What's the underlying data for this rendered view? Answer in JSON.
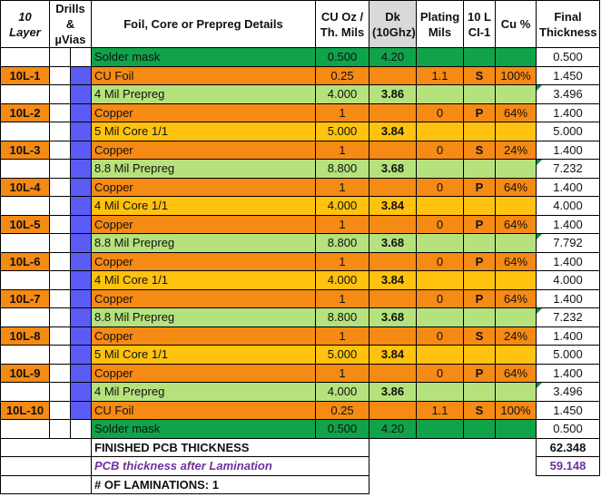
{
  "header": {
    "layer": "10 Layer",
    "drills": "Drills & µVias",
    "desc": "Foil, Core or Prepreg Details",
    "cu": "CU Oz / Th. Mils",
    "dk": "Dk (10Ghz)",
    "plating": "Plating Mils",
    "ci": "10 L CI-1",
    "cupct": "Cu %",
    "final": "Final Thickness"
  },
  "rows": [
    {
      "layer": "",
      "desc": "Solder mask",
      "cu": "0.500",
      "dk": "4.20",
      "plat": "",
      "ci": "",
      "cupct": "",
      "final": "0.500",
      "color": "green",
      "via": false,
      "flag": false
    },
    {
      "layer": "10L-1",
      "desc": "CU Foil",
      "cu": "0.25",
      "dk": "",
      "plat": "1.1",
      "ci": "S",
      "cupct": "100%",
      "final": "1.450",
      "color": "orange",
      "via": true,
      "flag": false
    },
    {
      "layer": "",
      "desc": "4 Mil Prepreg",
      "cu": "4.000",
      "dk": "3.86",
      "plat": "",
      "ci": "",
      "cupct": "",
      "final": "3.496",
      "color": "lgreen",
      "via": true,
      "flag": true
    },
    {
      "layer": "10L-2",
      "desc": "Copper",
      "cu": "1",
      "dk": "",
      "plat": "0",
      "ci": "P",
      "cupct": "64%",
      "final": "1.400",
      "color": "orange",
      "via": true,
      "flag": false
    },
    {
      "layer": "",
      "desc": "5 Mil Core 1/1",
      "cu": "5.000",
      "dk": "3.84",
      "plat": "",
      "ci": "",
      "cupct": "",
      "final": "5.000",
      "color": "yellow",
      "via": true,
      "flag": false
    },
    {
      "layer": "10L-3",
      "desc": "Copper",
      "cu": "1",
      "dk": "",
      "plat": "0",
      "ci": "S",
      "cupct": "24%",
      "final": "1.400",
      "color": "orange",
      "via": true,
      "flag": false
    },
    {
      "layer": "",
      "desc": "8.8 Mil Prepreg",
      "cu": "8.800",
      "dk": "3.68",
      "plat": "",
      "ci": "",
      "cupct": "",
      "final": "7.232",
      "color": "lgreen",
      "via": true,
      "flag": true
    },
    {
      "layer": "10L-4",
      "desc": "Copper",
      "cu": "1",
      "dk": "",
      "plat": "0",
      "ci": "P",
      "cupct": "64%",
      "final": "1.400",
      "color": "orange",
      "via": true,
      "flag": false
    },
    {
      "layer": "",
      "desc": "4 Mil Core 1/1",
      "cu": "4.000",
      "dk": "3.84",
      "plat": "",
      "ci": "",
      "cupct": "",
      "final": "4.000",
      "color": "yellow",
      "via": true,
      "flag": false
    },
    {
      "layer": "10L-5",
      "desc": "Copper",
      "cu": "1",
      "dk": "",
      "plat": "0",
      "ci": "P",
      "cupct": "64%",
      "final": "1.400",
      "color": "orange",
      "via": true,
      "flag": false
    },
    {
      "layer": "",
      "desc": "8.8 Mil Prepreg",
      "cu": "8.800",
      "dk": "3.68",
      "plat": "",
      "ci": "",
      "cupct": "",
      "final": "7.792",
      "color": "lgreen",
      "via": true,
      "flag": true
    },
    {
      "layer": "10L-6",
      "desc": "Copper",
      "cu": "1",
      "dk": "",
      "plat": "0",
      "ci": "P",
      "cupct": "64%",
      "final": "1.400",
      "color": "orange",
      "via": true,
      "flag": false
    },
    {
      "layer": "",
      "desc": "4 Mil Core 1/1",
      "cu": "4.000",
      "dk": "3.84",
      "plat": "",
      "ci": "",
      "cupct": "",
      "final": "4.000",
      "color": "yellow",
      "via": true,
      "flag": false
    },
    {
      "layer": "10L-7",
      "desc": "Copper",
      "cu": "1",
      "dk": "",
      "plat": "0",
      "ci": "P",
      "cupct": "64%",
      "final": "1.400",
      "color": "orange",
      "via": true,
      "flag": false
    },
    {
      "layer": "",
      "desc": "8.8 Mil Prepreg",
      "cu": "8.800",
      "dk": "3.68",
      "plat": "",
      "ci": "",
      "cupct": "",
      "final": "7.232",
      "color": "lgreen",
      "via": true,
      "flag": true
    },
    {
      "layer": "10L-8",
      "desc": "Copper",
      "cu": "1",
      "dk": "",
      "plat": "0",
      "ci": "S",
      "cupct": "24%",
      "final": "1.400",
      "color": "orange",
      "via": true,
      "flag": false
    },
    {
      "layer": "",
      "desc": "5 Mil Core 1/1",
      "cu": "5.000",
      "dk": "3.84",
      "plat": "",
      "ci": "",
      "cupct": "",
      "final": "5.000",
      "color": "yellow",
      "via": true,
      "flag": false
    },
    {
      "layer": "10L-9",
      "desc": "Copper",
      "cu": "1",
      "dk": "",
      "plat": "0",
      "ci": "P",
      "cupct": "64%",
      "final": "1.400",
      "color": "orange",
      "via": true,
      "flag": false
    },
    {
      "layer": "",
      "desc": "4 Mil Prepreg",
      "cu": "4.000",
      "dk": "3.86",
      "plat": "",
      "ci": "",
      "cupct": "",
      "final": "3.496",
      "color": "lgreen",
      "via": true,
      "flag": true
    },
    {
      "layer": "10L-10",
      "desc": "CU Foil",
      "cu": "0.25",
      "dk": "",
      "plat": "1.1",
      "ci": "S",
      "cupct": "100%",
      "final": "1.450",
      "color": "orange",
      "via": true,
      "flag": false
    },
    {
      "layer": "",
      "desc": "Solder mask",
      "cu": "0.500",
      "dk": "4.20",
      "plat": "",
      "ci": "",
      "cupct": "",
      "final": "0.500",
      "color": "green",
      "via": false,
      "flag": false
    }
  ],
  "totals": {
    "finished_label": "FINISHED PCB  THICKNESS",
    "finished_value": "62.348",
    "lamination_label": "PCB thickness after Lamination",
    "lamination_value": "59.148",
    "laminations_label": "# OF LAMINATIONS: 1"
  },
  "colors": {
    "solder_mask": "#10a34a",
    "copper": "#f58a14",
    "prepreg": "#b5e27d",
    "core": "#ffc20e",
    "via": "#5b5cf5",
    "lamination_text": "#7030a0"
  }
}
